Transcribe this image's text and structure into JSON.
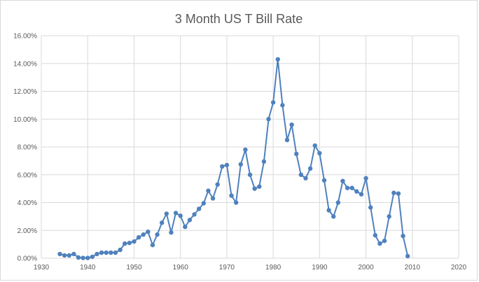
{
  "chart_data": {
    "type": "line",
    "title": "3 Month US T Bill Rate",
    "xlabel": "",
    "ylabel": "",
    "xlim": [
      1930,
      2020
    ],
    "ylim": [
      0,
      16
    ],
    "x_ticks": [
      1930,
      1940,
      1950,
      1960,
      1970,
      1980,
      1990,
      2000,
      2010,
      2020
    ],
    "x_tick_labels": [
      "1930",
      "1940",
      "1950",
      "1960",
      "1970",
      "1980",
      "1990",
      "2000",
      "2010",
      "2020"
    ],
    "y_ticks": [
      0,
      2,
      4,
      6,
      8,
      10,
      12,
      14,
      16
    ],
    "y_tick_labels": [
      "0.00%",
      "2.00%",
      "4.00%",
      "6.00%",
      "8.00%",
      "10.00%",
      "12.00%",
      "14.00%",
      "16.00%"
    ],
    "grid": true,
    "legend": "none",
    "series": [
      {
        "color": "#4f81bd",
        "x": [
          1934,
          1935,
          1936,
          1937,
          1938,
          1939,
          1940,
          1941,
          1942,
          1943,
          1944,
          1945,
          1946,
          1947,
          1948,
          1949,
          1950,
          1951,
          1952,
          1953,
          1954,
          1955,
          1956,
          1957,
          1958,
          1959,
          1960,
          1961,
          1962,
          1963,
          1964,
          1965,
          1966,
          1967,
          1968,
          1969,
          1970,
          1971,
          1972,
          1973,
          1974,
          1975,
          1976,
          1977,
          1978,
          1979,
          1980,
          1981,
          1982,
          1983,
          1984,
          1985,
          1986,
          1987,
          1988,
          1989,
          1990,
          1991,
          1992,
          1993,
          1994,
          1995,
          1996,
          1997,
          1998,
          1999,
          2000,
          2001,
          2002,
          2003,
          2004,
          2005,
          2006,
          2007,
          2008,
          2009
        ],
        "y": [
          0.3,
          0.2,
          0.2,
          0.3,
          0.05,
          0.02,
          0.02,
          0.1,
          0.3,
          0.4,
          0.4,
          0.4,
          0.4,
          0.6,
          1.05,
          1.1,
          1.2,
          1.5,
          1.7,
          1.9,
          0.95,
          1.7,
          2.55,
          3.2,
          1.85,
          3.25,
          3.05,
          2.25,
          2.75,
          3.15,
          3.55,
          3.95,
          4.85,
          4.3,
          5.3,
          6.6,
          6.7,
          4.5,
          4.0,
          6.75,
          7.8,
          6.0,
          5.0,
          5.15,
          6.95,
          10.0,
          11.2,
          14.3,
          11.0,
          8.5,
          9.6,
          7.5,
          6.0,
          5.75,
          6.45,
          8.1,
          7.55,
          5.6,
          3.45,
          3.0,
          4.0,
          5.55,
          5.05,
          5.05,
          4.8,
          4.6,
          5.75,
          3.65,
          1.65,
          1.05,
          1.25,
          3.0,
          4.7,
          4.65,
          1.6,
          0.15
        ]
      }
    ]
  }
}
